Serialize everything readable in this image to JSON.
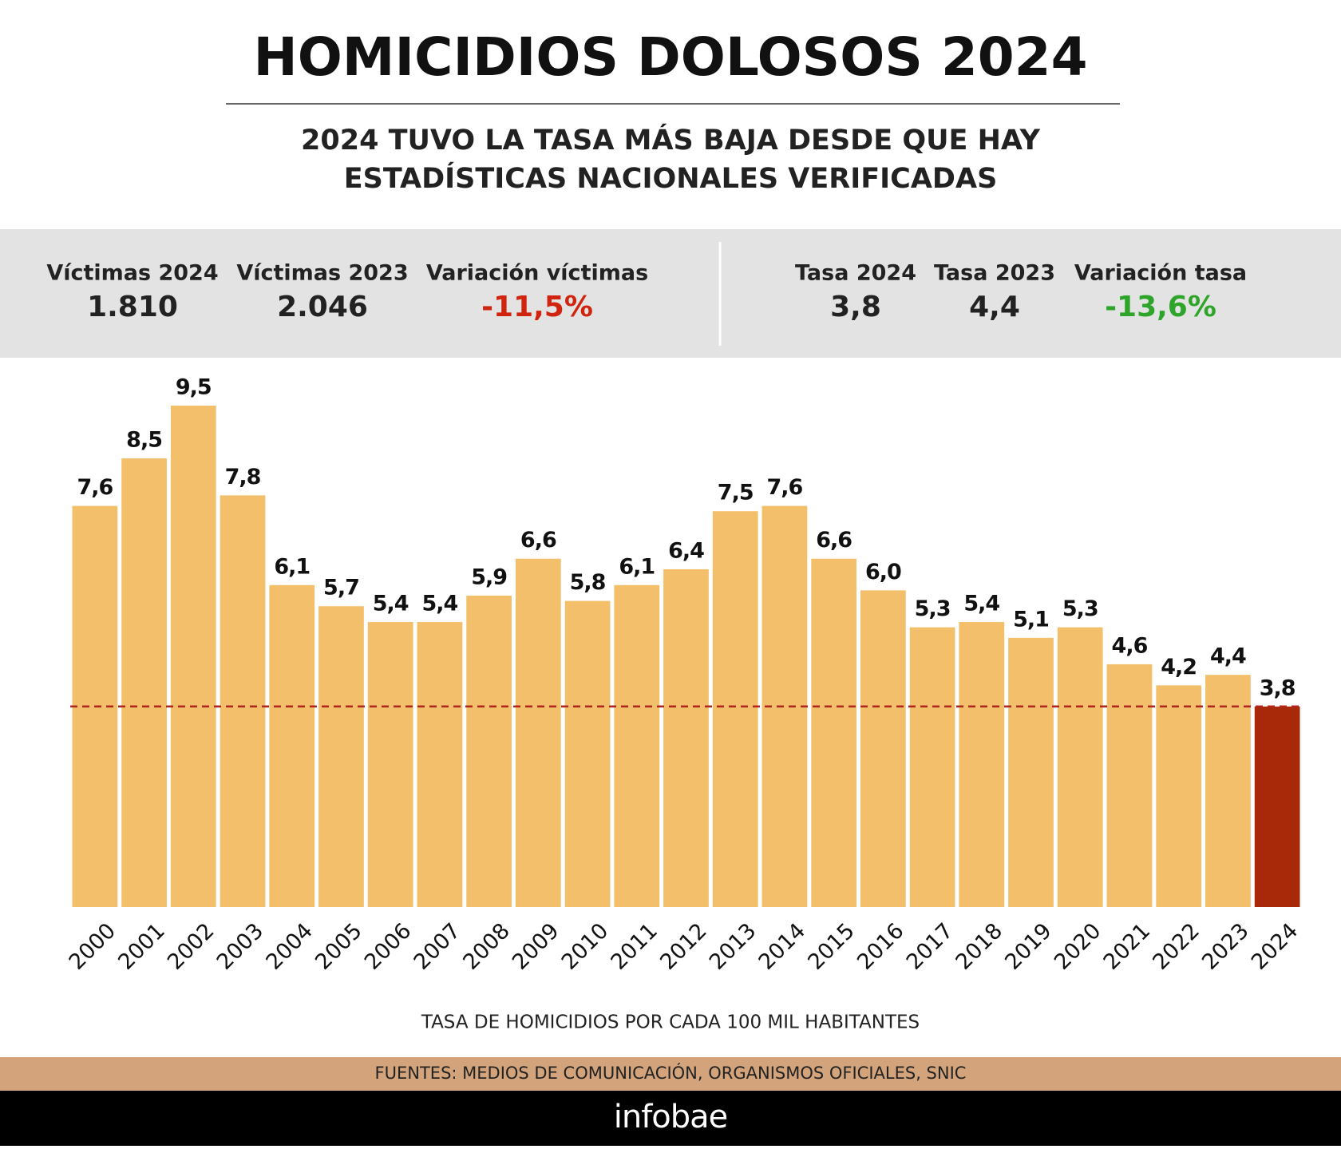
{
  "header": {
    "title": "HOMICIDIOS DOLOSOS 2024",
    "subtitle": [
      "2024 TUVO LA TASA MÁS BAJA DESDE QUE HAY",
      "ESTADÍSTICAS NACIONALES VERIFICADAS"
    ]
  },
  "stats": [
    {
      "label": "Víctimas 2024",
      "value": "1.810"
    },
    {
      "label": "Víctimas 2023",
      "value": "2.046"
    },
    {
      "label": "Variación víctimas",
      "value": "-11,5%",
      "color": "#d0240e"
    },
    {
      "label": "Tasa 2024",
      "value": "3,8"
    },
    {
      "label": "Tasa 2023",
      "value": "4,4"
    },
    {
      "label": "Variación tasa",
      "value": "-13,6%",
      "color": "#2ea52a"
    }
  ],
  "chart_data": {
    "type": "bar",
    "categories": [
      "2000",
      "2001",
      "2002",
      "2003",
      "2004",
      "2005",
      "2006",
      "2007",
      "2008",
      "2009",
      "2010",
      "2011",
      "2012",
      "2013",
      "2014",
      "2015",
      "2016",
      "2017",
      "2018",
      "2019",
      "2020",
      "2021",
      "2022",
      "2023",
      "2024"
    ],
    "values": [
      7.6,
      8.5,
      9.5,
      7.8,
      6.1,
      5.7,
      5.4,
      5.4,
      5.9,
      6.6,
      5.8,
      6.1,
      6.4,
      7.5,
      7.6,
      6.6,
      6.0,
      5.3,
      5.4,
      5.1,
      5.3,
      4.6,
      4.2,
      4.4,
      3.8
    ],
    "value_labels": [
      "7,6",
      "8,5",
      "9,5",
      "7,8",
      "6,1",
      "5,7",
      "5,4",
      "5,4",
      "5,9",
      "6,6",
      "5,8",
      "6,1",
      "6,4",
      "7,5",
      "7,6",
      "6,6",
      "6,0",
      "5,3",
      "5,4",
      "5,1",
      "5,3",
      "4,6",
      "4,2",
      "4,4",
      "3,8"
    ],
    "colors": [
      "#f3bf6b",
      "#f3bf6b",
      "#f3bf6b",
      "#f3bf6b",
      "#f3bf6b",
      "#f3bf6b",
      "#f3bf6b",
      "#f3bf6b",
      "#f3bf6b",
      "#f3bf6b",
      "#f3bf6b",
      "#f3bf6b",
      "#f3bf6b",
      "#f3bf6b",
      "#f3bf6b",
      "#f3bf6b",
      "#f3bf6b",
      "#f3bf6b",
      "#f3bf6b",
      "#f3bf6b",
      "#f3bf6b",
      "#f3bf6b",
      "#f3bf6b",
      "#f3bf6b",
      "#a8290a"
    ],
    "reference_line_color": "#b3261e",
    "x_label": "TASA DE HOMICIDIOS POR CADA 100 MIL HABITANTES"
  },
  "footer": {
    "source": "FUENTES: MEDIOS DE COMUNICACIÓN, ORGANISMOS OFICIALES, SNIC",
    "brand": "infobae"
  }
}
